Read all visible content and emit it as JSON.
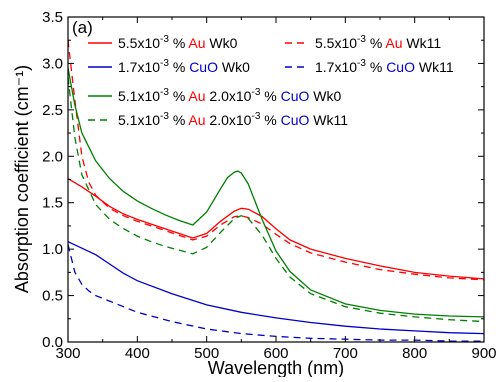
{
  "chart_data": {
    "type": "line",
    "panel_label": "(a)",
    "xlabel": "Wavelength (nm)",
    "ylabel": "Absorption coefficient (cm⁻¹)",
    "xlim": [
      300,
      900
    ],
    "ylim": [
      0,
      3.5
    ],
    "xticks": [
      "300",
      "400",
      "500",
      "600",
      "700",
      "800",
      "900"
    ],
    "yticks": [
      "0.0",
      "0.5",
      "1.0",
      "1.5",
      "2.0",
      "2.5",
      "3.0",
      "3.5"
    ],
    "grid": false,
    "legend_position": "top",
    "series": [
      {
        "name": "5.5x10⁻³ % Au Wk0",
        "color": "#ff0000",
        "dash": "solid",
        "x": [
          300,
          320,
          340,
          360,
          380,
          400,
          420,
          440,
          460,
          480,
          500,
          520,
          540,
          550,
          560,
          580,
          600,
          620,
          650,
          700,
          750,
          800,
          850,
          900
        ],
        "y": [
          1.76,
          1.67,
          1.57,
          1.46,
          1.38,
          1.32,
          1.27,
          1.22,
          1.17,
          1.12,
          1.17,
          1.3,
          1.41,
          1.44,
          1.43,
          1.35,
          1.22,
          1.1,
          1.0,
          0.9,
          0.82,
          0.75,
          0.71,
          0.68
        ]
      },
      {
        "name": "5.5x10⁻³ % Au Wk11",
        "color": "#ff0000",
        "dash": "dashed",
        "x": [
          300,
          310,
          320,
          330,
          340,
          360,
          380,
          400,
          420,
          440,
          460,
          480,
          500,
          520,
          540,
          550,
          560,
          580,
          600,
          620,
          650,
          700,
          750,
          800,
          850,
          900
        ],
        "y": [
          3.25,
          2.6,
          2.0,
          1.72,
          1.58,
          1.44,
          1.36,
          1.3,
          1.25,
          1.2,
          1.15,
          1.1,
          1.14,
          1.26,
          1.35,
          1.36,
          1.34,
          1.27,
          1.16,
          1.06,
          0.96,
          0.86,
          0.78,
          0.73,
          0.69,
          0.67
        ]
      },
      {
        "name": "1.7x10⁻³ % CuO Wk0",
        "color": "#0000cc",
        "dash": "solid",
        "x": [
          300,
          320,
          340,
          360,
          380,
          400,
          450,
          500,
          550,
          600,
          650,
          700,
          750,
          800,
          850,
          900
        ],
        "y": [
          1.08,
          1.01,
          0.94,
          0.84,
          0.74,
          0.66,
          0.52,
          0.4,
          0.32,
          0.26,
          0.21,
          0.17,
          0.14,
          0.12,
          0.1,
          0.09
        ]
      },
      {
        "name": "1.7x10⁻³ % CuO Wk11",
        "color": "#0000cc",
        "dash": "dashed",
        "x": [
          300,
          310,
          320,
          330,
          340,
          360,
          380,
          400,
          450,
          500,
          550,
          600,
          650,
          700,
          750,
          800,
          850,
          900
        ],
        "y": [
          1.05,
          0.75,
          0.62,
          0.55,
          0.5,
          0.44,
          0.38,
          0.32,
          0.22,
          0.14,
          0.09,
          0.06,
          0.04,
          0.03,
          0.02,
          0.02,
          0.01,
          0.01
        ]
      },
      {
        "name": "5.1x10⁻³ % Au 2.0x10⁻³ % CuO Wk0",
        "color": "#008000",
        "dash": "solid",
        "x": [
          300,
          310,
          320,
          340,
          360,
          380,
          400,
          420,
          440,
          460,
          480,
          500,
          520,
          530,
          540,
          545,
          550,
          560,
          580,
          600,
          620,
          650,
          700,
          750,
          800,
          850,
          900
        ],
        "y": [
          2.95,
          2.55,
          2.25,
          1.95,
          1.76,
          1.62,
          1.52,
          1.44,
          1.37,
          1.31,
          1.26,
          1.4,
          1.65,
          1.77,
          1.83,
          1.84,
          1.82,
          1.7,
          1.32,
          0.98,
          0.76,
          0.56,
          0.41,
          0.34,
          0.3,
          0.28,
          0.27
        ]
      },
      {
        "name": "5.1x10⁻³ % Au 2.0x10⁻³ % CuO Wk11",
        "color": "#008000",
        "dash": "dashed",
        "x": [
          300,
          310,
          320,
          340,
          360,
          380,
          400,
          420,
          440,
          460,
          480,
          500,
          520,
          540,
          550,
          560,
          580,
          600,
          620,
          650,
          700,
          750,
          800,
          850,
          900
        ],
        "y": [
          2.85,
          2.2,
          1.8,
          1.48,
          1.32,
          1.22,
          1.14,
          1.08,
          1.03,
          0.99,
          0.95,
          1.02,
          1.18,
          1.33,
          1.36,
          1.33,
          1.15,
          0.9,
          0.7,
          0.52,
          0.38,
          0.31,
          0.27,
          0.24,
          0.22
        ]
      }
    ],
    "legend": [
      {
        "line_color": "#ff0000",
        "dash": "solid",
        "parts": [
          {
            "t": "5.5x10",
            "c": "#000000"
          },
          {
            "t": "-3",
            "c": "#000000",
            "sup": true
          },
          {
            "t": " % ",
            "c": "#000000"
          },
          {
            "t": "Au",
            "c": "#ff0000"
          },
          {
            "t": " Wk0",
            "c": "#000000"
          }
        ]
      },
      {
        "line_color": "#ff0000",
        "dash": "dashed",
        "parts": [
          {
            "t": "5.5x10",
            "c": "#000000"
          },
          {
            "t": "-3",
            "c": "#000000",
            "sup": true
          },
          {
            "t": " % ",
            "c": "#000000"
          },
          {
            "t": "Au",
            "c": "#ff0000"
          },
          {
            "t": " Wk11",
            "c": "#000000"
          }
        ]
      },
      {
        "line_color": "#0000cc",
        "dash": "solid",
        "parts": [
          {
            "t": "1.7x10",
            "c": "#000000"
          },
          {
            "t": "-3",
            "c": "#000000",
            "sup": true
          },
          {
            "t": " % ",
            "c": "#000000"
          },
          {
            "t": "CuO",
            "c": "#0000cc"
          },
          {
            "t": " Wk0",
            "c": "#000000"
          }
        ]
      },
      {
        "line_color": "#0000cc",
        "dash": "dashed",
        "parts": [
          {
            "t": "1.7x10",
            "c": "#000000"
          },
          {
            "t": "-3",
            "c": "#000000",
            "sup": true
          },
          {
            "t": " % ",
            "c": "#000000"
          },
          {
            "t": "CuO",
            "c": "#0000cc"
          },
          {
            "t": " Wk11",
            "c": "#000000"
          }
        ]
      },
      {
        "line_color": "#008000",
        "dash": "solid",
        "parts": [
          {
            "t": "5.1x10",
            "c": "#000000"
          },
          {
            "t": "-3",
            "c": "#000000",
            "sup": true
          },
          {
            "t": " % ",
            "c": "#000000"
          },
          {
            "t": "Au",
            "c": "#ff0000"
          },
          {
            "t": " 2.0x10",
            "c": "#000000"
          },
          {
            "t": "-3",
            "c": "#000000",
            "sup": true
          },
          {
            "t": " % ",
            "c": "#000000"
          },
          {
            "t": "CuO",
            "c": "#0000cc"
          },
          {
            "t": " Wk0",
            "c": "#000000"
          }
        ]
      },
      {
        "line_color": "#008000",
        "dash": "dashed",
        "parts": [
          {
            "t": "5.1x10",
            "c": "#000000"
          },
          {
            "t": "-3",
            "c": "#000000",
            "sup": true
          },
          {
            "t": " % ",
            "c": "#000000"
          },
          {
            "t": "Au",
            "c": "#ff0000"
          },
          {
            "t": " 2.0x10",
            "c": "#000000"
          },
          {
            "t": "-3",
            "c": "#000000",
            "sup": true
          },
          {
            "t": " % ",
            "c": "#000000"
          },
          {
            "t": "CuO",
            "c": "#0000cc"
          },
          {
            "t": " Wk11",
            "c": "#000000"
          }
        ]
      }
    ]
  }
}
